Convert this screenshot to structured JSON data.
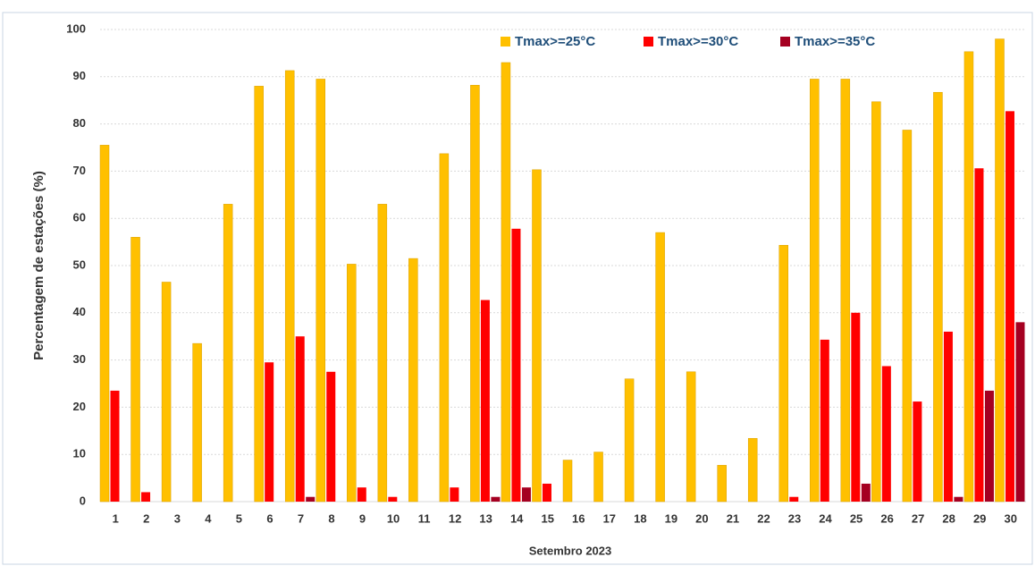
{
  "chart_data": {
    "type": "bar",
    "x_label": "Setembro  2023",
    "y_label": "Percentagem de estações (%)",
    "categories": [
      "1",
      "2",
      "3",
      "4",
      "5",
      "6",
      "7",
      "8",
      "9",
      "10",
      "11",
      "12",
      "13",
      "14",
      "15",
      "16",
      "17",
      "18",
      "19",
      "20",
      "21",
      "22",
      "23",
      "24",
      "25",
      "26",
      "27",
      "28",
      "29",
      "30"
    ],
    "series": [
      {
        "name": "Tmax>=25°C",
        "color": "#ffc000",
        "values": [
          75.5,
          56,
          46.5,
          33.5,
          63,
          88,
          91.3,
          89.5,
          50.3,
          63,
          51.5,
          73.7,
          88.2,
          93,
          70.3,
          8.8,
          10.5,
          26,
          57,
          27.5,
          7.7,
          13.4,
          54.3,
          89.5,
          89.5,
          84.7,
          78.7,
          86.7,
          95.3,
          98
        ]
      },
      {
        "name": "Tmax>=30°C",
        "color": "#ff0000",
        "values": [
          23.5,
          2,
          0,
          0,
          0,
          29.5,
          35,
          27.5,
          3,
          1,
          0,
          3,
          42.7,
          57.8,
          3.8,
          0,
          0,
          0,
          0,
          0,
          0,
          0,
          1,
          34.3,
          40,
          28.7,
          21.2,
          36,
          70.6,
          82.7
        ]
      },
      {
        "name": "Tmax>=35°C",
        "color": "#a50021",
        "values": [
          0,
          0,
          0,
          0,
          0,
          0,
          1,
          0,
          0,
          0,
          0,
          0,
          1,
          3,
          0,
          0,
          0,
          0,
          0,
          0,
          0,
          0,
          0,
          0,
          3.8,
          0,
          0,
          1,
          23.5,
          38
        ]
      }
    ],
    "ylim": [
      0,
      100
    ],
    "yticks": [
      0,
      10,
      20,
      30,
      40,
      50,
      60,
      70,
      80,
      90,
      100
    ],
    "grid": true,
    "legend": "top-right"
  }
}
